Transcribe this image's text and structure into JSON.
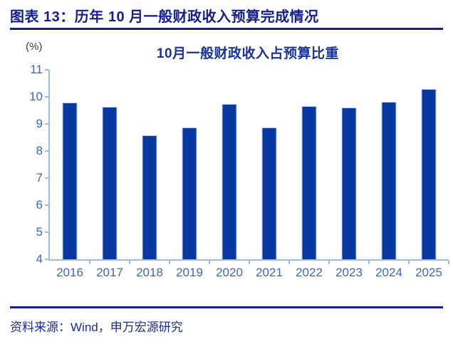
{
  "figure": {
    "title": "图表 13：历年 10 月一般财政收入预算完成情况",
    "source": "资料来源：Wind，申万宏源研究"
  },
  "colors": {
    "header_navy": "#131f8e",
    "chart_title_blue": "#1733a1",
    "bar_fill": "#0839a3",
    "bar_border": "#b4cbee",
    "axis_line": "#9dbbea",
    "tick_label_blue": "#3c64c0",
    "unit_label_gray": "#404040",
    "background": "#ffffff"
  },
  "chart_data": {
    "type": "bar",
    "title": "10月一般财政收入占预算比重",
    "unit_label": "(%)",
    "categories": [
      "2016",
      "2017",
      "2018",
      "2019",
      "2020",
      "2021",
      "2022",
      "2023",
      "2024",
      "2025"
    ],
    "values": [
      9.78,
      9.63,
      8.58,
      8.86,
      9.74,
      8.86,
      9.66,
      9.6,
      9.81,
      10.29
    ],
    "xlabel": "",
    "ylabel": "(%)",
    "ylim": [
      4,
      11
    ],
    "yticks": [
      4,
      5,
      6,
      7,
      8,
      9,
      10,
      11
    ],
    "grid": false,
    "legend": false
  }
}
